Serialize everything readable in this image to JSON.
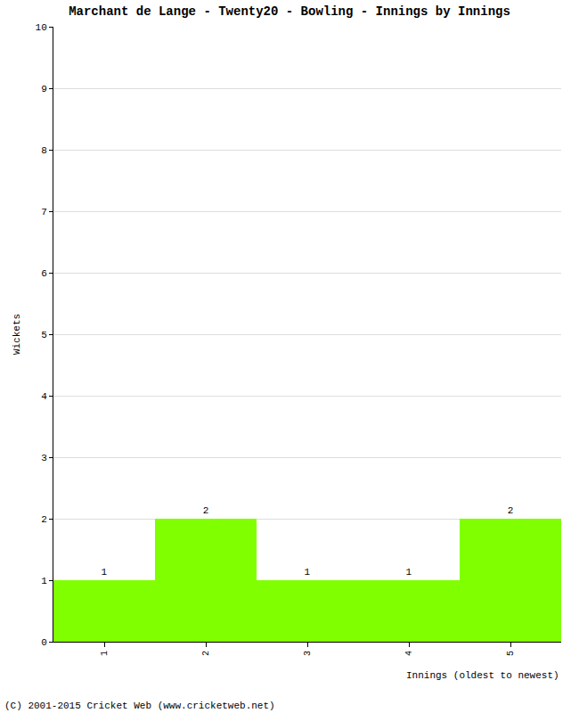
{
  "chart_data": {
    "type": "bar",
    "title": "Marchant de Lange - Twenty20 - Bowling - Innings by Innings",
    "x_label": "Innings (oldest to newest)",
    "y_label": "Wickets",
    "footer": "(C) 2001-2015 Cricket Web (www.cricketweb.net)",
    "categories": [
      "1",
      "2",
      "3",
      "4",
      "5"
    ],
    "values": [
      1,
      2,
      1,
      1,
      2
    ],
    "color": "#80ff00",
    "ylim": [
      0,
      10
    ],
    "yticks": [
      0,
      1,
      2,
      3,
      4,
      5,
      6,
      7,
      8,
      9,
      10
    ],
    "grid": true,
    "data_labels": true
  }
}
